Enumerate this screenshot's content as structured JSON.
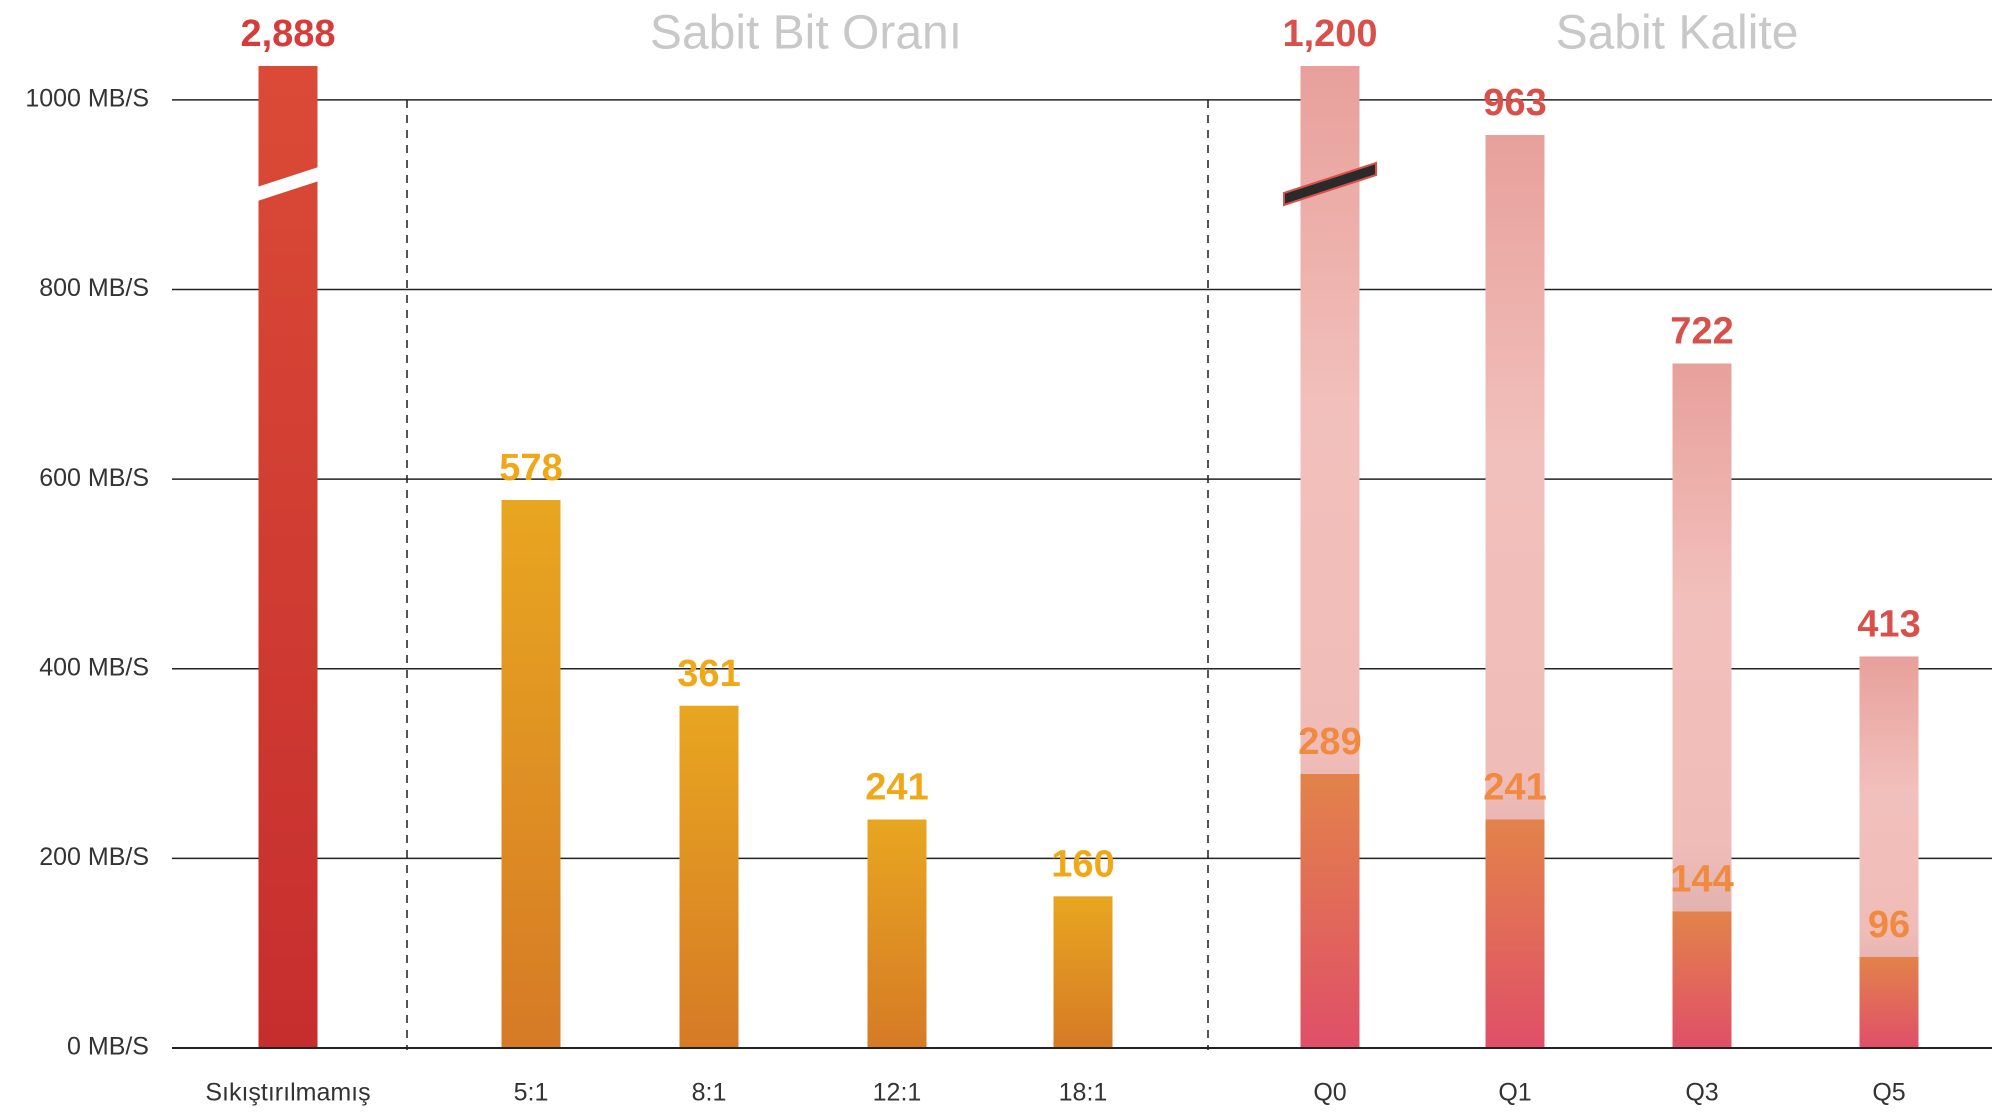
{
  "chart_data": {
    "type": "bar",
    "annotations": [
      "Sabit Bit Oranı",
      "Sabit Kalite"
    ],
    "categories": [
      "Sıkıştırılmamış",
      "5:1",
      "8:1",
      "12:1",
      "18:1",
      "Q0",
      "Q1",
      "Q3",
      "Q5"
    ],
    "series": [
      {
        "colors": [
          "url(#gRed)",
          "url(#gOrange)",
          "url(#gOrange)",
          "url(#gOrange)",
          "url(#gOrange)",
          "url(#gPink)",
          "url(#gPink)",
          "url(#gPink)",
          "url(#gPink)"
        ],
        "label_colors": [
          "#d63c3c",
          "#f0a818",
          "#f0a818",
          "#f0a818",
          "#f0a818",
          "#d9504a",
          "#d9504a",
          "#d9504a",
          "#d9504a"
        ],
        "values": [
          2888,
          578,
          361,
          241,
          160,
          1200,
          963,
          722,
          413
        ],
        "value_labels": [
          "2,888",
          "578",
          "361",
          "241",
          "160",
          "1,200",
          "963",
          "722",
          "413"
        ]
      },
      {
        "color": "url(#gInner)",
        "label_color": "#f08a40",
        "values": [
          null,
          null,
          null,
          null,
          null,
          289,
          241,
          144,
          96
        ]
      }
    ],
    "ylim": [
      0,
      1040
    ],
    "yticks": [
      {
        "value": 0,
        "label": "0 MB/S"
      },
      {
        "value": 200,
        "label": "200 MB/S"
      },
      {
        "value": 400,
        "label": "400 MB/S"
      },
      {
        "value": 600,
        "label": "600 MB/S"
      },
      {
        "value": 800,
        "label": "800 MB/S"
      },
      {
        "value": 1000,
        "label": "1000 MB/S"
      }
    ],
    "grid": true
  }
}
